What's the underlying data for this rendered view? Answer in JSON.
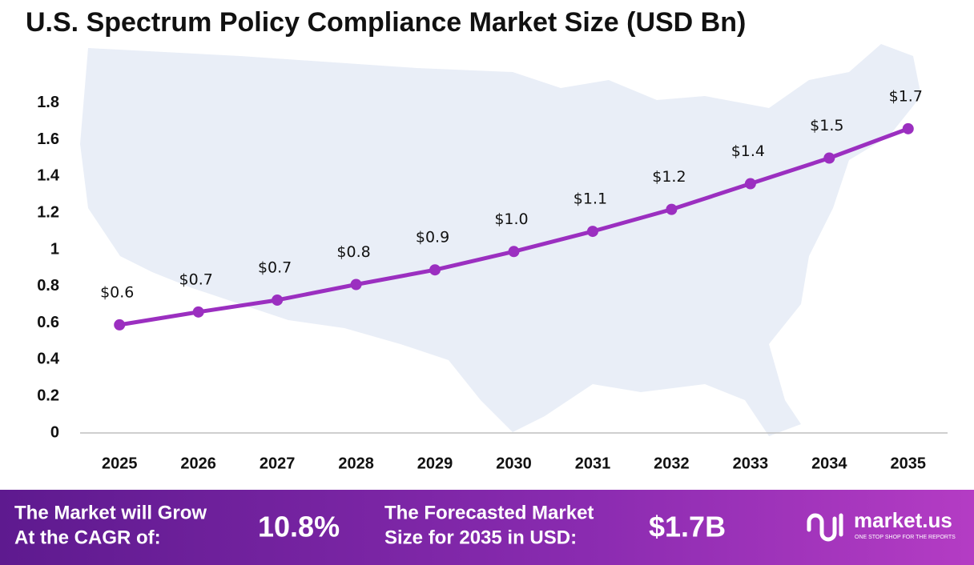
{
  "chart_data": {
    "type": "line",
    "title": "U.S. Spectrum Policy Compliance Market Size (USD Bn)",
    "categories": [
      "2025",
      "2026",
      "2027",
      "2028",
      "2029",
      "2030",
      "2031",
      "2032",
      "2033",
      "2034",
      "2035"
    ],
    "series": [
      {
        "name": "Market Size",
        "color": "#9b2fc0",
        "values": [
          0.59,
          0.66,
          0.725,
          0.81,
          0.89,
          0.99,
          1.1,
          1.22,
          1.36,
          1.5,
          1.66
        ],
        "value_labels": [
          "$0.6",
          "$0.7",
          "$0.7",
          "$0.8",
          "$0.9",
          "$1.0",
          "$1.1",
          "$1.2",
          "$1.4",
          "$1.5",
          "$1.7"
        ]
      }
    ],
    "ylim": [
      0,
      2
    ],
    "yticks": [
      0,
      0.2,
      0.4,
      0.6,
      0.8,
      1,
      1.2,
      1.4,
      1.6,
      1.8
    ],
    "grid": false
  },
  "footer": {
    "cagr_text": [
      "The Market will Grow",
      "At the CAGR of:"
    ],
    "cagr_value": "10.8%",
    "forecast_text": [
      "The Forecasted Market",
      "Size for 2035 in USD:"
    ],
    "forecast_value": "$1.7B",
    "brand": "market.us",
    "tagline": "ONE STOP SHOP FOR THE REPORTS"
  }
}
